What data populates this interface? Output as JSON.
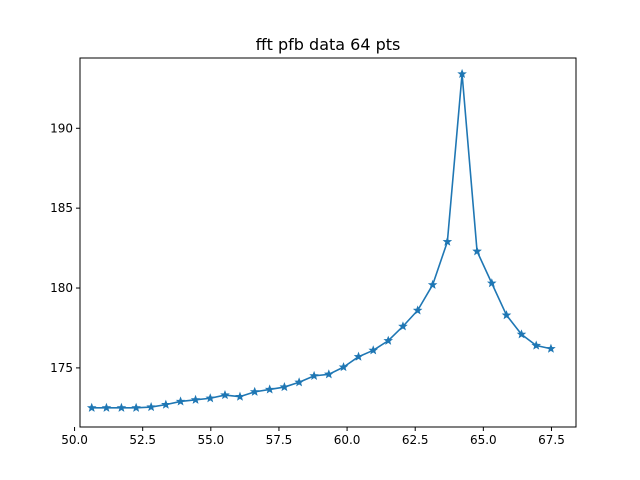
{
  "chart_data": {
    "type": "line",
    "title": "fft pfb data 64 pts",
    "xlabel": "",
    "ylabel": "",
    "xlim": [
      50.2,
      68.4
    ],
    "ylim": [
      171.3,
      194.4
    ],
    "xticks": [
      50.0,
      52.5,
      55.0,
      57.5,
      60.0,
      62.5,
      65.0,
      67.5
    ],
    "xtick_labels": [
      "50.0",
      "52.5",
      "55.0",
      "57.5",
      "60.0",
      "62.5",
      "65.0",
      "67.5"
    ],
    "yticks": [
      175,
      180,
      185,
      190
    ],
    "ytick_labels": [
      "175",
      "180",
      "185",
      "190"
    ],
    "grid": false,
    "legend": "none",
    "colors": {
      "series": "#1f77b4"
    },
    "marker": "star",
    "series": [
      {
        "x": [
          50.63,
          51.17,
          51.72,
          52.26,
          52.81,
          53.35,
          53.89,
          54.44,
          54.98,
          55.52,
          56.07,
          56.61,
          57.16,
          57.7,
          58.24,
          58.79,
          59.33,
          59.87,
          60.42,
          60.96,
          61.51,
          62.05,
          62.59,
          63.14,
          63.68,
          64.22,
          64.77,
          65.31,
          65.85,
          66.4,
          66.94,
          67.48
        ],
        "values": [
          172.5,
          172.5,
          172.5,
          172.5,
          172.55,
          172.7,
          172.9,
          173.0,
          173.1,
          173.3,
          173.2,
          173.5,
          173.65,
          173.8,
          174.1,
          174.5,
          174.6,
          175.05,
          175.7,
          176.1,
          176.7,
          177.6,
          178.6,
          180.2,
          182.9,
          193.4,
          182.3,
          180.3,
          178.3,
          177.1,
          176.4,
          176.2
        ]
      }
    ]
  }
}
